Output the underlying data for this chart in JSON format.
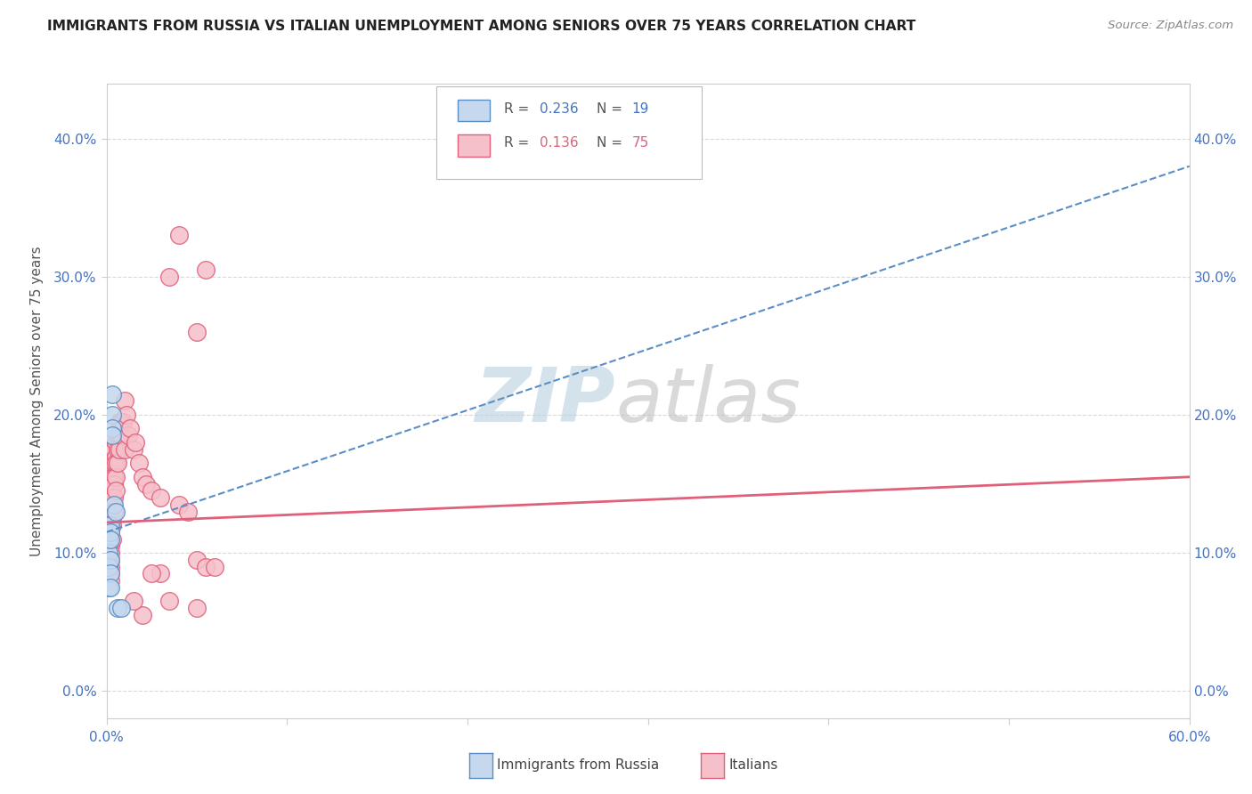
{
  "title": "IMMIGRANTS FROM RUSSIA VS ITALIAN UNEMPLOYMENT AMONG SENIORS OVER 75 YEARS CORRELATION CHART",
  "source": "Source: ZipAtlas.com",
  "ylabel": "Unemployment Among Seniors over 75 years",
  "watermark_zip": "ZIP",
  "watermark_atlas": "atlas",
  "xlim": [
    0.0,
    0.6
  ],
  "ylim": [
    -0.02,
    0.44
  ],
  "xticks": [
    0.0,
    0.1,
    0.2,
    0.3,
    0.4,
    0.5,
    0.6
  ],
  "yticks": [
    0.0,
    0.1,
    0.2,
    0.3,
    0.4
  ],
  "ytick_labels": [
    "0.0%",
    "10.0%",
    "20.0%",
    "30.0%",
    "40.0%"
  ],
  "color_russia": "#c5d8ee",
  "color_russia_edge": "#5b8ec4",
  "color_russia_line": "#5b8ec4",
  "color_italians": "#f5c0ca",
  "color_italians_edge": "#e0607a",
  "color_italians_line": "#e0607a",
  "color_r_blue": "#4472c4",
  "color_r_pink": "#e0607a",
  "background_color": "#ffffff",
  "grid_color": "#d5d5d5",
  "russia_x": [
    0.001,
    0.001,
    0.001,
    0.001,
    0.001,
    0.002,
    0.002,
    0.002,
    0.002,
    0.002,
    0.002,
    0.003,
    0.003,
    0.003,
    0.003,
    0.004,
    0.005,
    0.006,
    0.008
  ],
  "russia_y": [
    0.12,
    0.11,
    0.1,
    0.09,
    0.075,
    0.12,
    0.115,
    0.11,
    0.095,
    0.085,
    0.075,
    0.215,
    0.2,
    0.19,
    0.185,
    0.135,
    0.13,
    0.06,
    0.06
  ],
  "italians_x": [
    0.001,
    0.001,
    0.001,
    0.001,
    0.001,
    0.001,
    0.001,
    0.001,
    0.001,
    0.001,
    0.002,
    0.002,
    0.002,
    0.002,
    0.002,
    0.002,
    0.002,
    0.002,
    0.002,
    0.002,
    0.002,
    0.003,
    0.003,
    0.003,
    0.003,
    0.003,
    0.003,
    0.003,
    0.004,
    0.004,
    0.004,
    0.004,
    0.004,
    0.004,
    0.005,
    0.005,
    0.005,
    0.005,
    0.005,
    0.006,
    0.006,
    0.006,
    0.007,
    0.007,
    0.007,
    0.008,
    0.008,
    0.009,
    0.01,
    0.01,
    0.011,
    0.012,
    0.013,
    0.015,
    0.016,
    0.018,
    0.02,
    0.022,
    0.025,
    0.03,
    0.035,
    0.04,
    0.05,
    0.055,
    0.04,
    0.045,
    0.05,
    0.055,
    0.06,
    0.05,
    0.035,
    0.03,
    0.025,
    0.02,
    0.015
  ],
  "italians_y": [
    0.13,
    0.125,
    0.12,
    0.115,
    0.11,
    0.105,
    0.1,
    0.095,
    0.09,
    0.085,
    0.13,
    0.125,
    0.12,
    0.115,
    0.11,
    0.105,
    0.1,
    0.095,
    0.09,
    0.085,
    0.08,
    0.155,
    0.15,
    0.145,
    0.135,
    0.125,
    0.12,
    0.11,
    0.175,
    0.165,
    0.155,
    0.15,
    0.14,
    0.13,
    0.18,
    0.17,
    0.165,
    0.155,
    0.145,
    0.185,
    0.175,
    0.165,
    0.195,
    0.185,
    0.175,
    0.195,
    0.185,
    0.195,
    0.21,
    0.175,
    0.2,
    0.185,
    0.19,
    0.175,
    0.18,
    0.165,
    0.155,
    0.15,
    0.145,
    0.14,
    0.3,
    0.33,
    0.26,
    0.305,
    0.135,
    0.13,
    0.095,
    0.09,
    0.09,
    0.06,
    0.065,
    0.085,
    0.085,
    0.055,
    0.065
  ],
  "russia_trendline_x": [
    0.0,
    0.6
  ],
  "russia_trendline_y": [
    0.115,
    0.38
  ],
  "italians_trendline_x": [
    0.0,
    0.6
  ],
  "italians_trendline_y": [
    0.122,
    0.155
  ]
}
